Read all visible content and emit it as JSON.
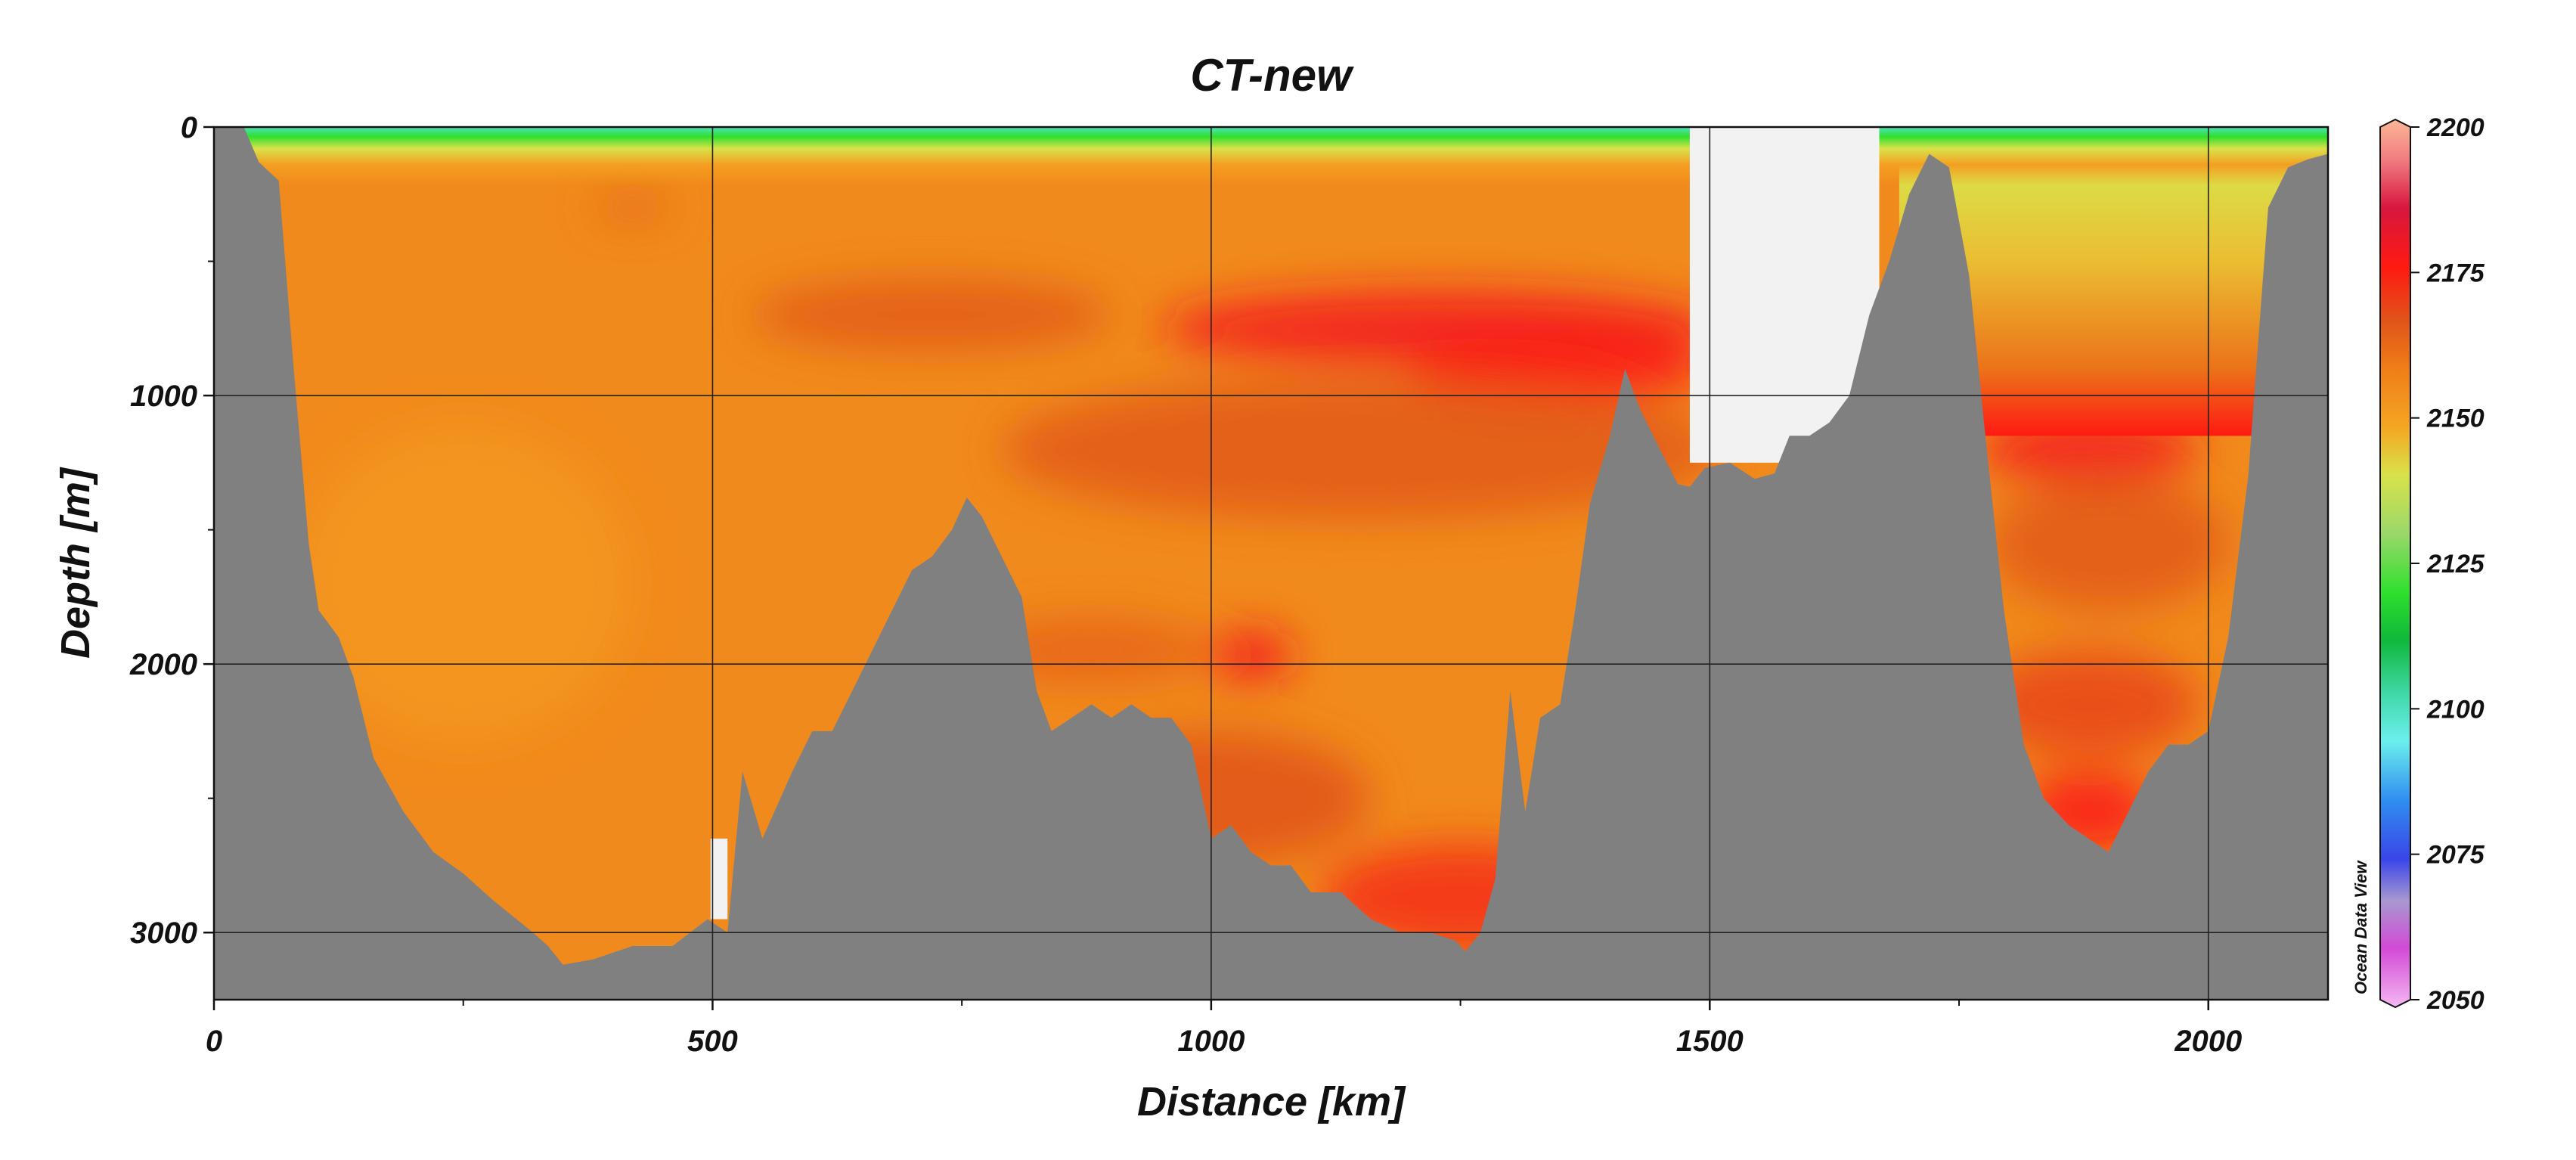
{
  "chart_data": {
    "type": "heatmap",
    "title": "CT-new",
    "xlabel": "Distance [km]",
    "ylabel": "Depth [m]",
    "xlim": [
      0,
      2120
    ],
    "ylim": [
      3250,
      0
    ],
    "x_ticks": [
      "0",
      "500",
      "1000",
      "1500",
      "2000"
    ],
    "y_ticks": [
      "0",
      "1000",
      "2000",
      "3000"
    ],
    "grid": true,
    "colorbar": {
      "min": 2050,
      "max": 2200,
      "ticks": [
        "2200",
        "2175",
        "2150",
        "2125",
        "2100",
        "2075",
        "2050"
      ],
      "stops": [
        {
          "value": 2050,
          "color": "#f5b8f2"
        },
        {
          "value": 2060,
          "color": "#d24ad6"
        },
        {
          "value": 2068,
          "color": "#a898d0"
        },
        {
          "value": 2075,
          "color": "#3a45e8"
        },
        {
          "value": 2085,
          "color": "#2f8ef0"
        },
        {
          "value": 2095,
          "color": "#6cefee"
        },
        {
          "value": 2103,
          "color": "#40d8a8"
        },
        {
          "value": 2112,
          "color": "#0fb83a"
        },
        {
          "value": 2120,
          "color": "#2ee02e"
        },
        {
          "value": 2130,
          "color": "#9ad86a"
        },
        {
          "value": 2140,
          "color": "#d9e24a"
        },
        {
          "value": 2148,
          "color": "#f5a623"
        },
        {
          "value": 2158,
          "color": "#ef7d18"
        },
        {
          "value": 2166,
          "color": "#e0541a"
        },
        {
          "value": 2175,
          "color": "#ff1a12"
        },
        {
          "value": 2185,
          "color": "#d8163e"
        },
        {
          "value": 2193,
          "color": "#f07a80"
        },
        {
          "value": 2200,
          "color": "#fbb795"
        }
      ]
    },
    "fields": [
      {
        "x": 1230,
        "y": 750,
        "value": 2178,
        "sx": 280,
        "sy": 140
      },
      {
        "x": 1350,
        "y": 900,
        "value": 2176,
        "sx": 150,
        "sy": 120
      },
      {
        "x": 1880,
        "y": 1200,
        "value": 2178,
        "sx": 110,
        "sy": 120
      },
      {
        "x": 1880,
        "y": 2550,
        "value": 2176,
        "sx": 70,
        "sy": 150
      },
      {
        "x": 1040,
        "y": 1970,
        "value": 2178,
        "sx": 42,
        "sy": 95
      },
      {
        "x": 1250,
        "y": 2870,
        "value": 2172,
        "sx": 140,
        "sy": 200
      },
      {
        "x": 1150,
        "y": 1200,
        "value": 2165,
        "sx": 360,
        "sy": 260
      },
      {
        "x": 720,
        "y": 700,
        "value": 2165,
        "sx": 180,
        "sy": 130
      },
      {
        "x": 420,
        "y": 300,
        "value": 2163,
        "sx": 40,
        "sy": 45
      },
      {
        "x": 1900,
        "y": 1550,
        "value": 2165,
        "sx": 120,
        "sy": 250
      },
      {
        "x": 1880,
        "y": 2150,
        "value": 2168,
        "sx": 110,
        "sy": 200
      },
      {
        "x": 880,
        "y": 1950,
        "value": 2163,
        "sx": 120,
        "sy": 120
      },
      {
        "x": 1000,
        "y": 2500,
        "value": 2166,
        "sx": 160,
        "sy": 250
      },
      {
        "x": 250,
        "y": 1700,
        "value": 2152,
        "sx": 170,
        "sy": 600
      }
    ],
    "surface_layers": [
      {
        "depth": 0,
        "value": 2100
      },
      {
        "depth": 35,
        "value": 2120
      },
      {
        "depth": 80,
        "value": 2140
      },
      {
        "depth": 140,
        "value": 2150
      }
    ],
    "east_basin": {
      "x_from": 1690,
      "x_to": 2120,
      "gradient": [
        {
          "depth": 0,
          "value": 2095
        },
        {
          "depth": 60,
          "value": 2118
        },
        {
          "depth": 150,
          "value": 2140
        },
        {
          "depth": 500,
          "value": 2145
        },
        {
          "depth": 900,
          "value": 2160
        },
        {
          "depth": 1150,
          "value": 2175
        }
      ]
    },
    "bathymetry": [
      [
        0,
        0
      ],
      [
        30,
        0
      ],
      [
        45,
        130
      ],
      [
        65,
        200
      ],
      [
        80,
        900
      ],
      [
        95,
        1550
      ],
      [
        105,
        1800
      ],
      [
        125,
        1900
      ],
      [
        140,
        2050
      ],
      [
        160,
        2350
      ],
      [
        190,
        2550
      ],
      [
        220,
        2700
      ],
      [
        250,
        2780
      ],
      [
        280,
        2880
      ],
      [
        320,
        3000
      ],
      [
        335,
        3050
      ],
      [
        350,
        3120
      ],
      [
        380,
        3100
      ],
      [
        420,
        3050
      ],
      [
        460,
        3050
      ],
      [
        495,
        2950
      ],
      [
        515,
        3000
      ],
      [
        530,
        2400
      ],
      [
        550,
        2650
      ],
      [
        580,
        2400
      ],
      [
        600,
        2250
      ],
      [
        620,
        2250
      ],
      [
        640,
        2100
      ],
      [
        660,
        1950
      ],
      [
        680,
        1800
      ],
      [
        700,
        1650
      ],
      [
        720,
        1600
      ],
      [
        740,
        1500
      ],
      [
        755,
        1380
      ],
      [
        770,
        1450
      ],
      [
        790,
        1600
      ],
      [
        810,
        1750
      ],
      [
        825,
        2100
      ],
      [
        840,
        2250
      ],
      [
        860,
        2200
      ],
      [
        880,
        2150
      ],
      [
        900,
        2200
      ],
      [
        920,
        2150
      ],
      [
        940,
        2200
      ],
      [
        960,
        2200
      ],
      [
        980,
        2300
      ],
      [
        1000,
        2650
      ],
      [
        1020,
        2600
      ],
      [
        1040,
        2700
      ],
      [
        1060,
        2750
      ],
      [
        1080,
        2750
      ],
      [
        1100,
        2850
      ],
      [
        1130,
        2850
      ],
      [
        1160,
        2950
      ],
      [
        1190,
        3000
      ],
      [
        1220,
        3000
      ],
      [
        1245,
        3030
      ],
      [
        1255,
        3070
      ],
      [
        1270,
        3000
      ],
      [
        1285,
        2800
      ],
      [
        1300,
        2100
      ],
      [
        1315,
        2550
      ],
      [
        1330,
        2200
      ],
      [
        1350,
        2150
      ],
      [
        1365,
        1800
      ],
      [
        1380,
        1400
      ],
      [
        1400,
        1150
      ],
      [
        1415,
        900
      ],
      [
        1430,
        1050
      ],
      [
        1450,
        1200
      ],
      [
        1468,
        1330
      ],
      [
        1480,
        1340
      ],
      [
        1495,
        1270
      ],
      [
        1520,
        1250
      ],
      [
        1545,
        1310
      ],
      [
        1565,
        1290
      ],
      [
        1580,
        1150
      ],
      [
        1600,
        1150
      ],
      [
        1620,
        1100
      ],
      [
        1640,
        1000
      ],
      [
        1660,
        700
      ],
      [
        1680,
        500
      ],
      [
        1700,
        250
      ],
      [
        1720,
        100
      ],
      [
        1740,
        150
      ],
      [
        1760,
        550
      ],
      [
        1775,
        1100
      ],
      [
        1795,
        1800
      ],
      [
        1815,
        2300
      ],
      [
        1835,
        2500
      ],
      [
        1860,
        2600
      ],
      [
        1880,
        2650
      ],
      [
        1900,
        2700
      ],
      [
        1920,
        2550
      ],
      [
        1940,
        2400
      ],
      [
        1960,
        2300
      ],
      [
        1980,
        2300
      ],
      [
        2000,
        2250
      ],
      [
        2020,
        1900
      ],
      [
        2040,
        1300
      ],
      [
        2060,
        300
      ],
      [
        2080,
        150
      ],
      [
        2100,
        120
      ],
      [
        2120,
        100
      ]
    ],
    "blank_regions": [
      {
        "x_from": 1480,
        "x_to": 1670,
        "depth_to": 1250
      },
      {
        "x_from": 498,
        "x_to": 515,
        "depth_from": 2650,
        "depth_to": 2950
      }
    ]
  },
  "credit": "Ocean Data View",
  "colors": {
    "land": "#808080",
    "blank": "#f2f2f2",
    "grid": "#222222"
  }
}
